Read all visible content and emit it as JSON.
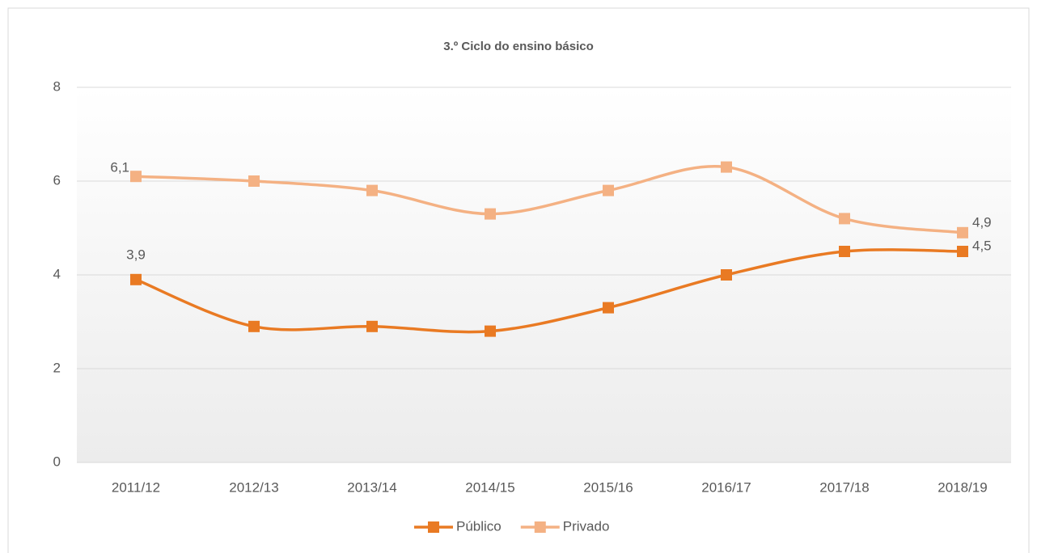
{
  "chart_data": {
    "type": "line",
    "title": "3.º Ciclo do ensino básico",
    "categories": [
      "2011/12",
      "2012/13",
      "2013/14",
      "2014/15",
      "2015/16",
      "2016/17",
      "2017/18",
      "2018/19"
    ],
    "series": [
      {
        "name": "Público",
        "color": "#e97a23",
        "values": [
          3.9,
          2.9,
          2.9,
          2.8,
          3.3,
          4.0,
          4.5,
          4.5
        ],
        "value_labels": [
          "3,9",
          null,
          null,
          null,
          null,
          null,
          null,
          "4,5"
        ]
      },
      {
        "name": "Privado",
        "color": "#f4b183",
        "values": [
          6.1,
          6.0,
          5.8,
          5.3,
          5.8,
          6.3,
          5.2,
          4.9
        ],
        "value_labels": [
          "6,1",
          null,
          null,
          null,
          null,
          null,
          null,
          "4,9"
        ]
      }
    ],
    "ylim": [
      0,
      8
    ],
    "yticks": [
      0,
      2,
      4,
      6,
      8
    ],
    "grid": true,
    "smooth": true,
    "legend": "bottom"
  }
}
